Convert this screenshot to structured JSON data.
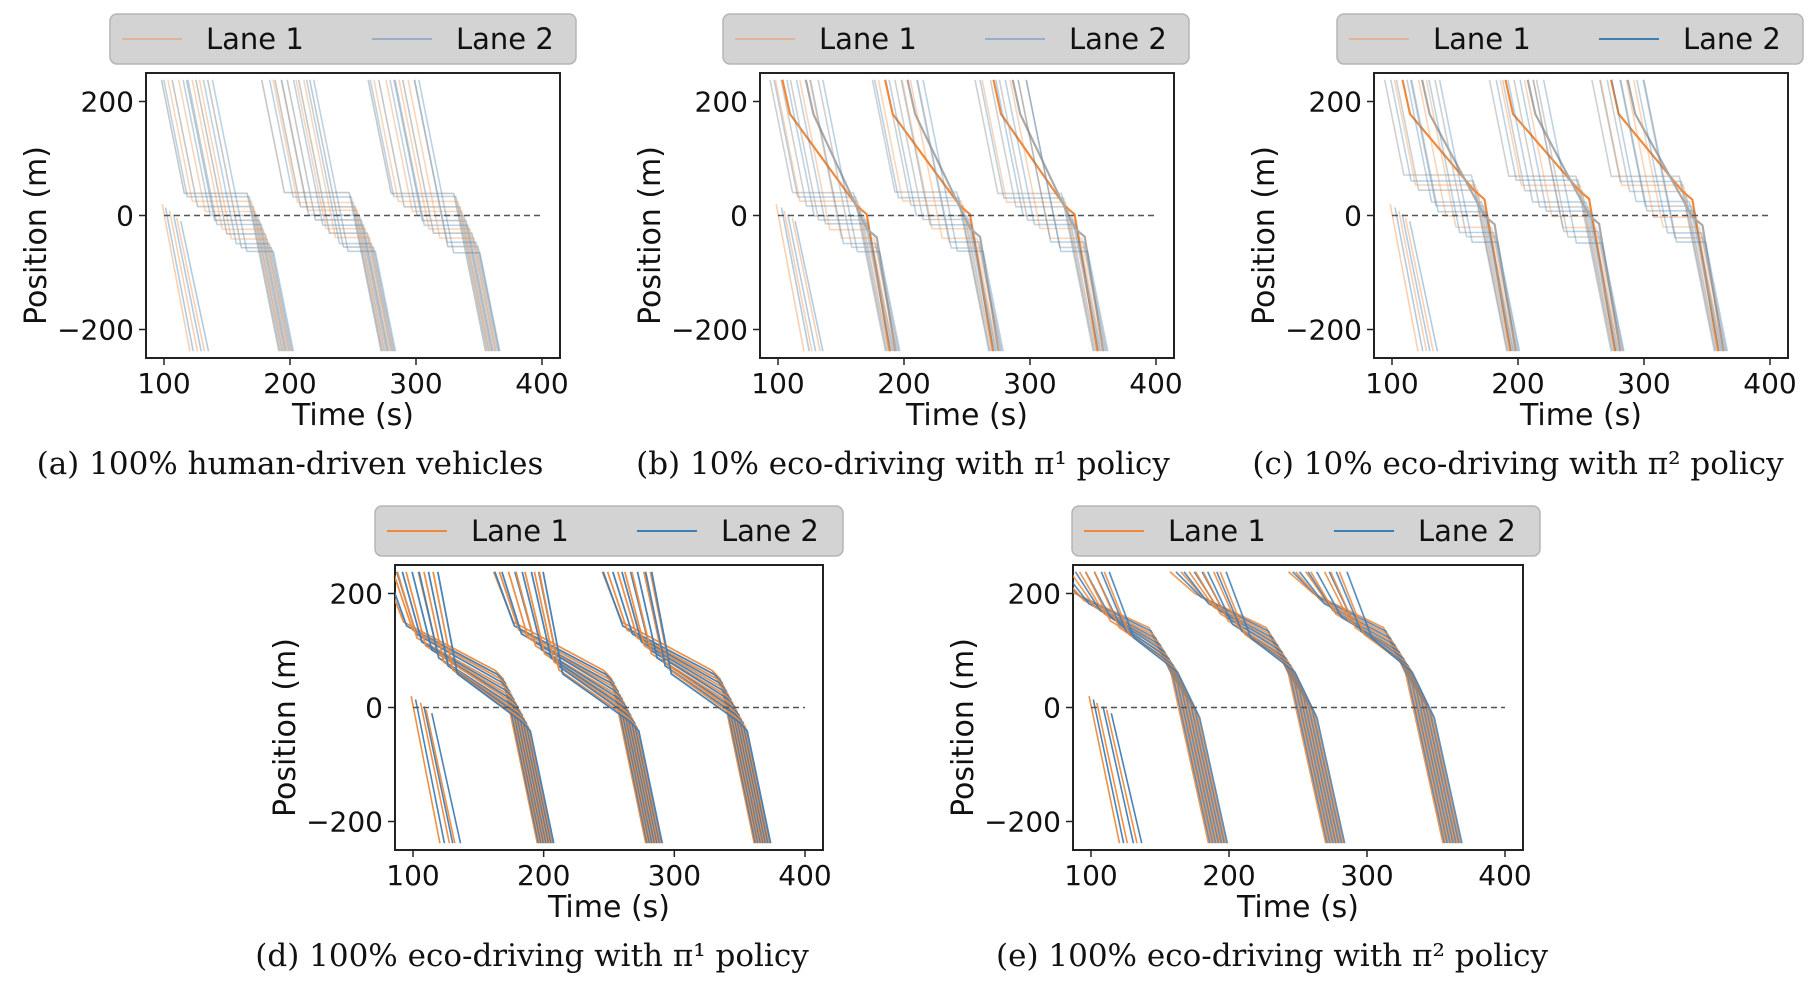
{
  "colors": {
    "lane1": "#ef8a3c",
    "lane2": "#3f7db5",
    "human": "#a9a9a9",
    "zero_line": "#555555",
    "legend_bg": "#d3d3d3"
  },
  "chart_data": [
    {
      "type": "line",
      "caption": "(a) 100% human-driven vehicles",
      "xlabel": "Time (s)",
      "ylabel": "Position (m)",
      "xlim": [
        100,
        400
      ],
      "ylim": [
        -250,
        250
      ],
      "xticks": [
        "100",
        "200",
        "300",
        "400"
      ],
      "yticks": [
        "−200",
        "0",
        "200"
      ],
      "legend": {
        "position": "top",
        "entries": [
          {
            "label": "Lane 1",
            "color": "lane1",
            "alpha": 0.4
          },
          {
            "label": "Lane 2",
            "color": "lane2",
            "alpha": 0.4
          }
        ]
      },
      "reference_line": {
        "y": 0,
        "style": "dashed"
      },
      "cycle_green_starts": [
        166,
        247,
        330
      ],
      "queue_spacing": 8,
      "queue_top": 40,
      "mix": "human",
      "series": [
        {
          "name": "Lane 1",
          "x": [
            100,
            125,
            135,
            166,
            186,
            400
          ],
          "y": [
            240,
            60,
            30,
            30,
            0,
            -235
          ]
        },
        {
          "name": "Lane 2",
          "x": [
            100,
            128,
            140,
            170,
            190,
            400
          ],
          "y": [
            240,
            55,
            25,
            25,
            0,
            -235
          ]
        }
      ]
    },
    {
      "type": "line",
      "caption": "(b) 10% eco-driving with π¹ policy",
      "xlabel": "Time (s)",
      "ylabel": "Position (m)",
      "xlim": [
        100,
        400
      ],
      "ylim": [
        -250,
        250
      ],
      "xticks": [
        "100",
        "200",
        "300",
        "400"
      ],
      "yticks": [
        "−200",
        "0",
        "200"
      ],
      "legend": {
        "position": "top",
        "entries": [
          {
            "label": "Lane 1",
            "color": "lane1",
            "alpha": 0.4
          },
          {
            "label": "Lane 2",
            "color": "lane2",
            "alpha": 0.4
          }
        ]
      },
      "reference_line": {
        "y": 0,
        "style": "dashed"
      },
      "cycle_green_starts": [
        160,
        242,
        325
      ],
      "queue_spacing": 8,
      "queue_top": 40,
      "mix": "eco10_pi1",
      "series": [
        {
          "name": "Lane 1",
          "x": [
            100,
            150,
            240,
            250,
            400
          ],
          "y": [
            200,
            90,
            20,
            0,
            -235
          ]
        },
        {
          "name": "Lane 2",
          "x": [
            100,
            140,
            160,
            175,
            400
          ],
          "y": [
            200,
            60,
            30,
            0,
            -235
          ]
        }
      ]
    },
    {
      "type": "line",
      "caption": "(c) 10% eco-driving with π² policy",
      "xlabel": "Time (s)",
      "ylabel": "Position (m)",
      "xlim": [
        100,
        400
      ],
      "ylim": [
        -250,
        250
      ],
      "xticks": [
        "100",
        "200",
        "300",
        "400"
      ],
      "yticks": [
        "−200",
        "0",
        "200"
      ],
      "legend": {
        "position": "top",
        "entries": [
          {
            "label": "Lane 1",
            "color": "lane1",
            "alpha": 0.4
          },
          {
            "label": "Lane 2",
            "color": "lane2",
            "alpha": 1.0
          }
        ]
      },
      "reference_line": {
        "y": 0,
        "style": "dashed"
      },
      "cycle_green_starts": [
        163,
        246,
        328
      ],
      "queue_spacing": 9,
      "queue_top": 70,
      "mix": "eco10_pi2",
      "series": [
        {
          "name": "Lane 1",
          "x": [
            100,
            130,
            163,
            180,
            400
          ],
          "y": [
            240,
            60,
            60,
            0,
            -235
          ]
        },
        {
          "name": "Lane 2",
          "x": [
            100,
            115,
            160,
            175,
            400
          ],
          "y": [
            210,
            60,
            60,
            0,
            -235
          ]
        }
      ]
    },
    {
      "type": "line",
      "caption": "(d) 100% eco-driving with π¹ policy",
      "xlabel": "Time (s)",
      "ylabel": "Position (m)",
      "xlim": [
        100,
        400
      ],
      "ylim": [
        -250,
        250
      ],
      "xticks": [
        "100",
        "200",
        "300",
        "400"
      ],
      "yticks": [
        "−200",
        "0",
        "200"
      ],
      "legend": {
        "position": "top",
        "entries": [
          {
            "label": "Lane 1",
            "color": "lane1",
            "alpha": 1.0
          },
          {
            "label": "Lane 2",
            "color": "lane2",
            "alpha": 1.0
          }
        ]
      },
      "reference_line": {
        "y": 0,
        "style": "dashed"
      },
      "cycle_green_starts": [
        165,
        248,
        331
      ],
      "mix": "eco100_pi1",
      "series": [
        {
          "name": "Lane 1",
          "x": [
            100,
            110,
            160,
            170,
            400
          ],
          "y": [
            140,
            100,
            40,
            0,
            -235
          ]
        },
        {
          "name": "Lane 2",
          "x": [
            100,
            110,
            165,
            175,
            400
          ],
          "y": [
            150,
            110,
            50,
            0,
            -235
          ]
        }
      ]
    },
    {
      "type": "line",
      "caption": "(e) 100% eco-driving with π² policy",
      "xlabel": "Time (s)",
      "ylabel": "Position (m)",
      "xlim": [
        100,
        400
      ],
      "ylim": [
        -250,
        250
      ],
      "xticks": [
        "100",
        "200",
        "300",
        "400"
      ],
      "yticks": [
        "−200",
        "0",
        "200"
      ],
      "legend": {
        "position": "top",
        "entries": [
          {
            "label": "Lane 1",
            "color": "lane1",
            "alpha": 1.0
          },
          {
            "label": "Lane 2",
            "color": "lane2",
            "alpha": 1.0
          }
        ]
      },
      "reference_line": {
        "y": 0,
        "style": "dashed"
      },
      "cycle_green_starts": [
        150,
        235,
        320
      ],
      "mix": "eco100_pi2",
      "series": [
        {
          "name": "Lane 1",
          "x": [
            100,
            150,
            165,
            175,
            400
          ],
          "y": [
            230,
            150,
            120,
            0,
            -235
          ]
        },
        {
          "name": "Lane 2",
          "x": [
            100,
            155,
            170,
            180,
            400
          ],
          "y": [
            230,
            150,
            110,
            0,
            -235
          ]
        }
      ]
    }
  ]
}
